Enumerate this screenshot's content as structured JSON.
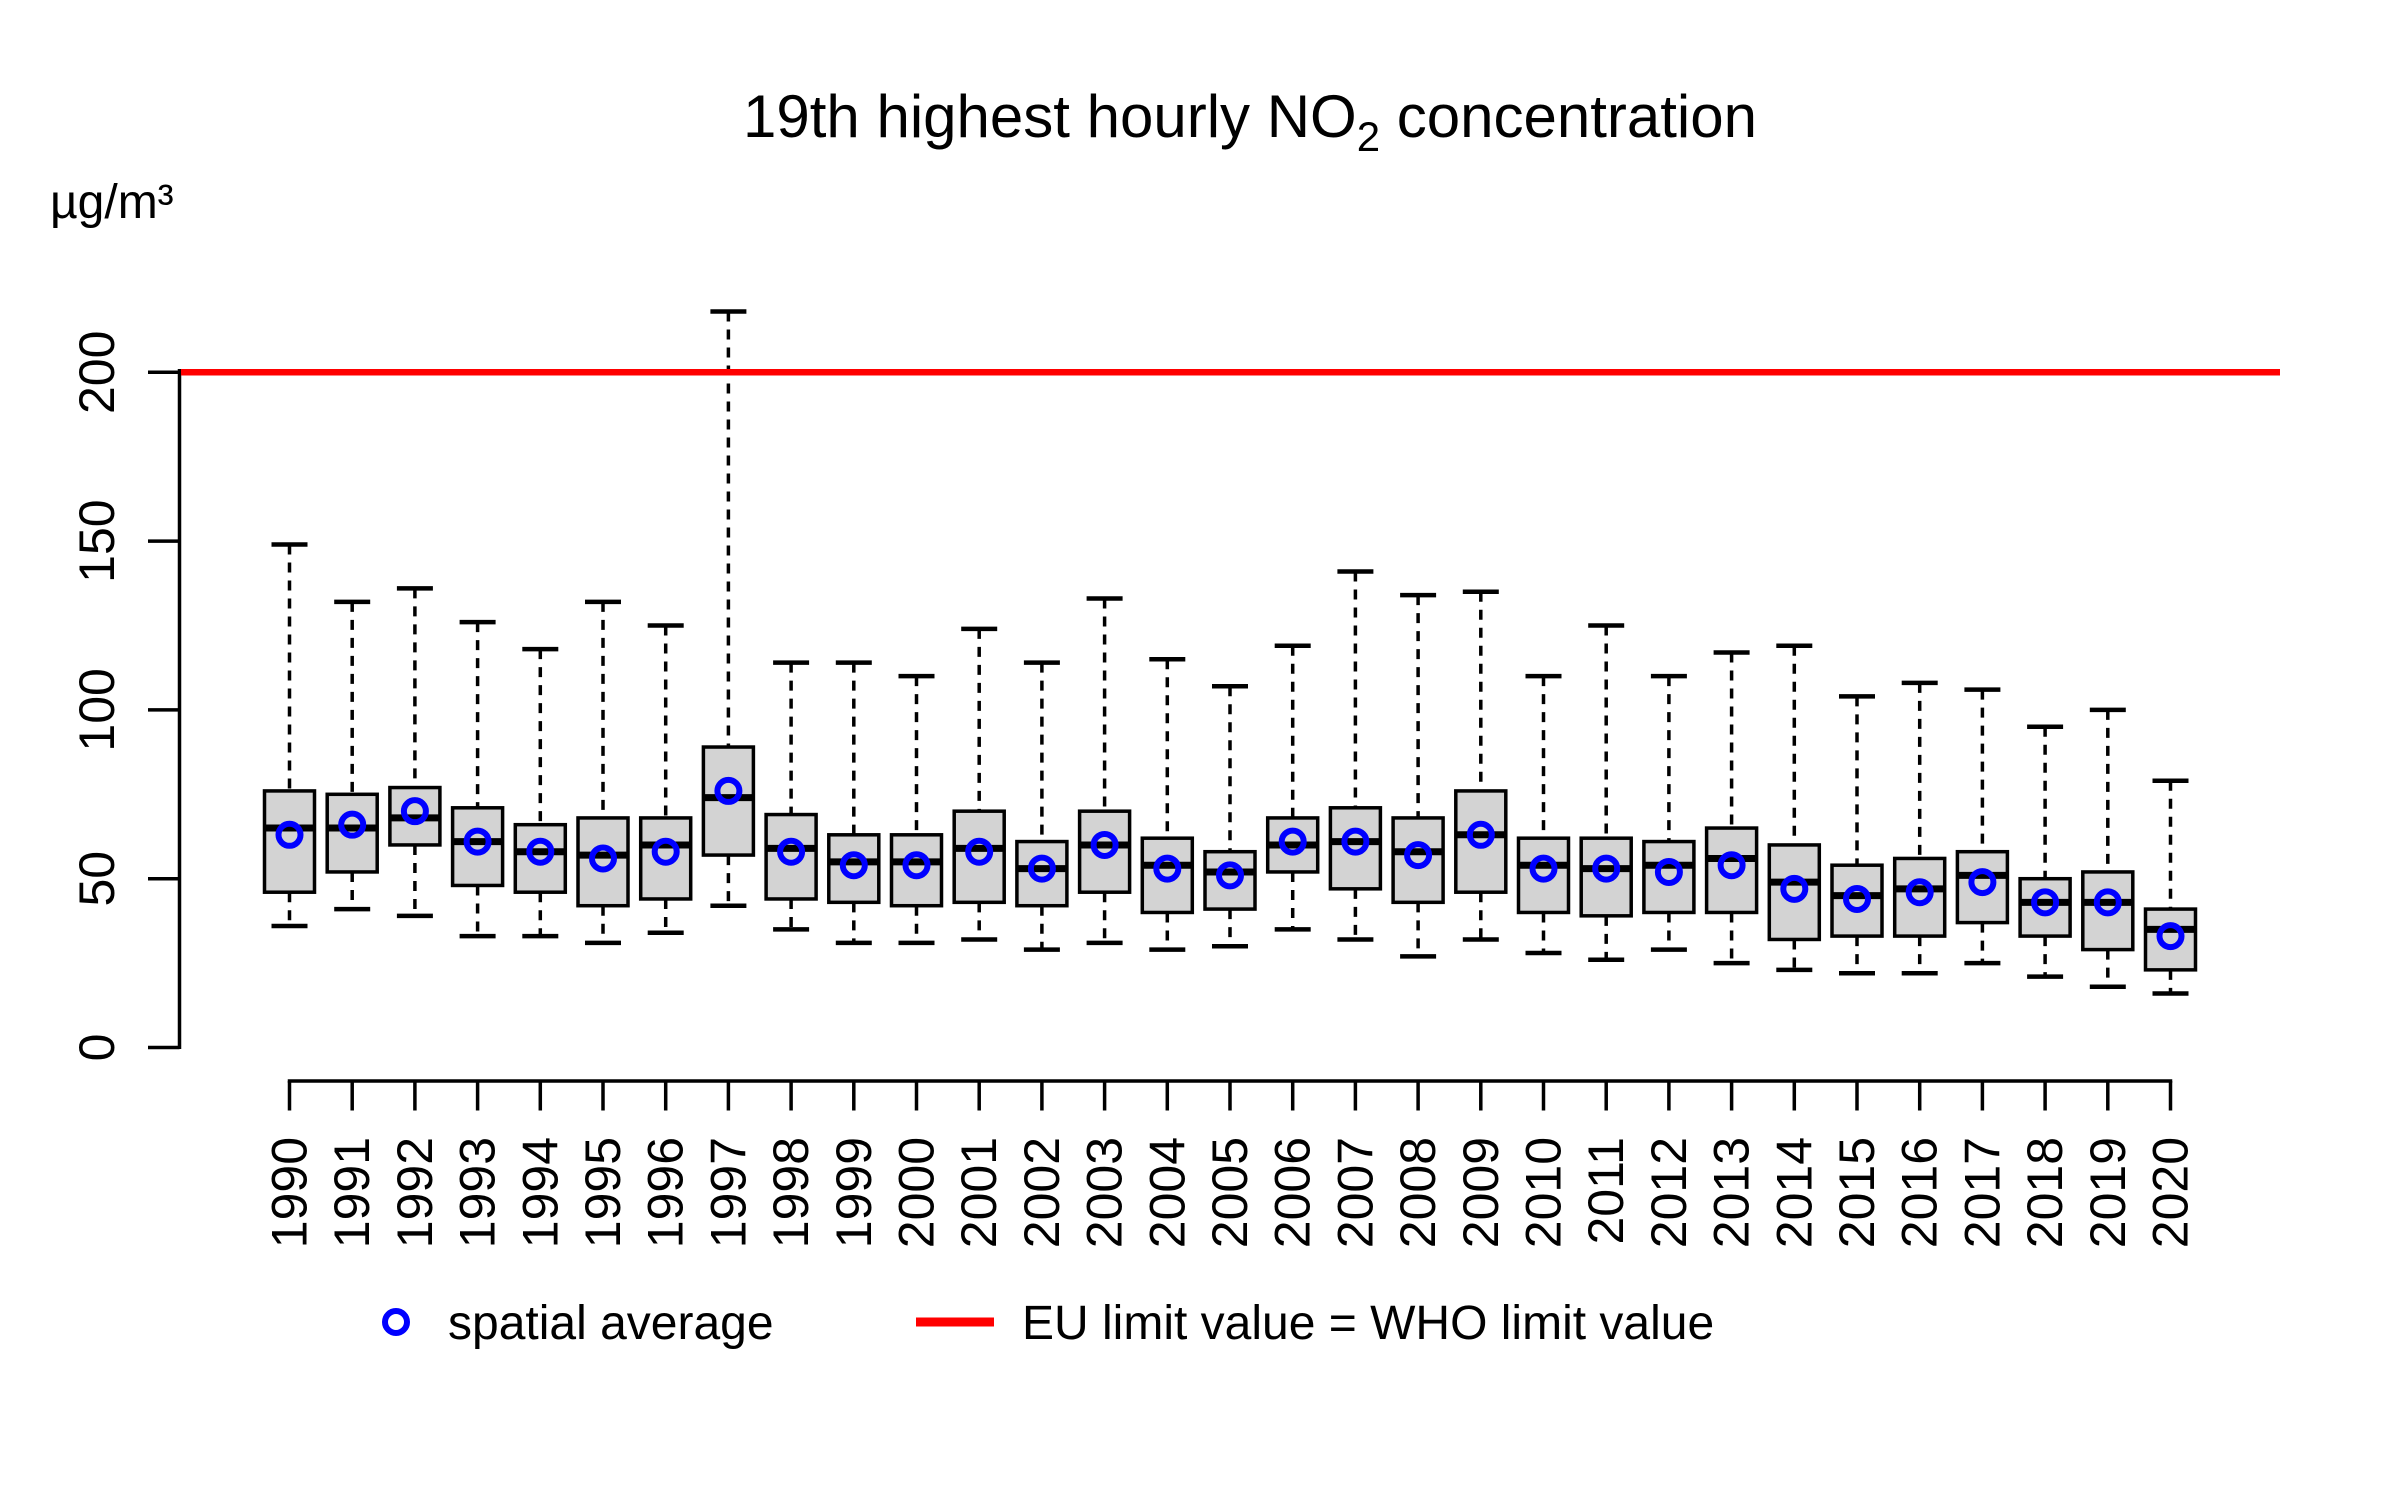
{
  "title": {
    "prefix": "19th highest hourly NO",
    "subscript": "2",
    "suffix": " concentration"
  },
  "y_axis": {
    "unit_label": "µg/m³",
    "ticks": [
      0,
      50,
      100,
      150,
      200
    ]
  },
  "x_axis": {
    "years": [
      "1990",
      "1991",
      "1992",
      "1993",
      "1994",
      "1995",
      "1996",
      "1997",
      "1998",
      "1999",
      "2000",
      "2001",
      "2002",
      "2003",
      "2004",
      "2005",
      "2006",
      "2007",
      "2008",
      "2009",
      "2010",
      "2011",
      "2012",
      "2013",
      "2014",
      "2015",
      "2016",
      "2017",
      "2018",
      "2019",
      "2020"
    ]
  },
  "legend": {
    "average_label": "spatial average",
    "limit_label": "EU limit value = WHO limit value"
  },
  "colors": {
    "box_fill": "#d3d3d3",
    "box_border": "#000000",
    "median_line": "#000000",
    "whisker": "#000000",
    "average_marker": "#0000ff",
    "limit_line": "#ff0000",
    "axis": "#000000"
  },
  "chart_data": {
    "type": "boxplot",
    "title": "19th highest hourly NO₂ concentration",
    "ylabel": "µg/m³",
    "xlabel": "",
    "ylim": [
      0,
      225
    ],
    "y_ticks": [
      0,
      50,
      100,
      150,
      200
    ],
    "grid": false,
    "legend_position": "bottom",
    "eu_limit_value": 200,
    "categories": [
      1990,
      1991,
      1992,
      1993,
      1994,
      1995,
      1996,
      1997,
      1998,
      1999,
      2000,
      2001,
      2002,
      2003,
      2004,
      2005,
      2006,
      2007,
      2008,
      2009,
      2010,
      2011,
      2012,
      2013,
      2014,
      2015,
      2016,
      2017,
      2018,
      2019,
      2020
    ],
    "boxes": [
      {
        "year": 1990,
        "whisker_low": 36,
        "q1": 46,
        "median": 65,
        "q3": 76,
        "whisker_high": 149,
        "spatial_average": 63
      },
      {
        "year": 1991,
        "whisker_low": 41,
        "q1": 52,
        "median": 65,
        "q3": 75,
        "whisker_high": 132,
        "spatial_average": 66
      },
      {
        "year": 1992,
        "whisker_low": 39,
        "q1": 60,
        "median": 68,
        "q3": 77,
        "whisker_high": 136,
        "spatial_average": 70
      },
      {
        "year": 1993,
        "whisker_low": 33,
        "q1": 48,
        "median": 61,
        "q3": 71,
        "whisker_high": 126,
        "spatial_average": 61
      },
      {
        "year": 1994,
        "whisker_low": 33,
        "q1": 46,
        "median": 58,
        "q3": 66,
        "whisker_high": 118,
        "spatial_average": 58
      },
      {
        "year": 1995,
        "whisker_low": 31,
        "q1": 42,
        "median": 57,
        "q3": 68,
        "whisker_high": 132,
        "spatial_average": 56
      },
      {
        "year": 1996,
        "whisker_low": 34,
        "q1": 44,
        "median": 60,
        "q3": 68,
        "whisker_high": 125,
        "spatial_average": 58
      },
      {
        "year": 1997,
        "whisker_low": 42,
        "q1": 57,
        "median": 74,
        "q3": 89,
        "whisker_high": 218,
        "spatial_average": 76
      },
      {
        "year": 1998,
        "whisker_low": 35,
        "q1": 44,
        "median": 59,
        "q3": 69,
        "whisker_high": 114,
        "spatial_average": 58
      },
      {
        "year": 1999,
        "whisker_low": 31,
        "q1": 43,
        "median": 55,
        "q3": 63,
        "whisker_high": 114,
        "spatial_average": 54
      },
      {
        "year": 2000,
        "whisker_low": 31,
        "q1": 42,
        "median": 55,
        "q3": 63,
        "whisker_high": 110,
        "spatial_average": 54
      },
      {
        "year": 2001,
        "whisker_low": 32,
        "q1": 43,
        "median": 59,
        "q3": 70,
        "whisker_high": 124,
        "spatial_average": 58
      },
      {
        "year": 2002,
        "whisker_low": 29,
        "q1": 42,
        "median": 53,
        "q3": 61,
        "whisker_high": 114,
        "spatial_average": 53
      },
      {
        "year": 2003,
        "whisker_low": 31,
        "q1": 46,
        "median": 60,
        "q3": 70,
        "whisker_high": 133,
        "spatial_average": 60
      },
      {
        "year": 2004,
        "whisker_low": 29,
        "q1": 40,
        "median": 54,
        "q3": 62,
        "whisker_high": 115,
        "spatial_average": 53
      },
      {
        "year": 2005,
        "whisker_low": 30,
        "q1": 41,
        "median": 52,
        "q3": 58,
        "whisker_high": 107,
        "spatial_average": 51
      },
      {
        "year": 2006,
        "whisker_low": 35,
        "q1": 52,
        "median": 60,
        "q3": 68,
        "whisker_high": 119,
        "spatial_average": 61
      },
      {
        "year": 2007,
        "whisker_low": 32,
        "q1": 47,
        "median": 61,
        "q3": 71,
        "whisker_high": 141,
        "spatial_average": 61
      },
      {
        "year": 2008,
        "whisker_low": 27,
        "q1": 43,
        "median": 58,
        "q3": 68,
        "whisker_high": 134,
        "spatial_average": 57
      },
      {
        "year": 2009,
        "whisker_low": 32,
        "q1": 46,
        "median": 63,
        "q3": 76,
        "whisker_high": 135,
        "spatial_average": 63
      },
      {
        "year": 2010,
        "whisker_low": 28,
        "q1": 40,
        "median": 54,
        "q3": 62,
        "whisker_high": 110,
        "spatial_average": 53
      },
      {
        "year": 2011,
        "whisker_low": 26,
        "q1": 39,
        "median": 53,
        "q3": 62,
        "whisker_high": 125,
        "spatial_average": 53
      },
      {
        "year": 2012,
        "whisker_low": 29,
        "q1": 40,
        "median": 54,
        "q3": 61,
        "whisker_high": 110,
        "spatial_average": 52
      },
      {
        "year": 2013,
        "whisker_low": 25,
        "q1": 40,
        "median": 56,
        "q3": 65,
        "whisker_high": 117,
        "spatial_average": 54
      },
      {
        "year": 2014,
        "whisker_low": 23,
        "q1": 32,
        "median": 49,
        "q3": 60,
        "whisker_high": 119,
        "spatial_average": 47
      },
      {
        "year": 2015,
        "whisker_low": 22,
        "q1": 33,
        "median": 45,
        "q3": 54,
        "whisker_high": 104,
        "spatial_average": 44
      },
      {
        "year": 2016,
        "whisker_low": 22,
        "q1": 33,
        "median": 47,
        "q3": 56,
        "whisker_high": 108,
        "spatial_average": 46
      },
      {
        "year": 2017,
        "whisker_low": 25,
        "q1": 37,
        "median": 51,
        "q3": 58,
        "whisker_high": 106,
        "spatial_average": 49
      },
      {
        "year": 2018,
        "whisker_low": 21,
        "q1": 33,
        "median": 43,
        "q3": 50,
        "whisker_high": 95,
        "spatial_average": 43
      },
      {
        "year": 2019,
        "whisker_low": 18,
        "q1": 29,
        "median": 43,
        "q3": 52,
        "whisker_high": 100,
        "spatial_average": 43
      },
      {
        "year": 2020,
        "whisker_low": 16,
        "q1": 23,
        "median": 35,
        "q3": 41,
        "whisker_high": 79,
        "spatial_average": 33
      }
    ],
    "legend_entries": [
      "spatial average",
      "EU limit value = WHO limit value"
    ]
  }
}
